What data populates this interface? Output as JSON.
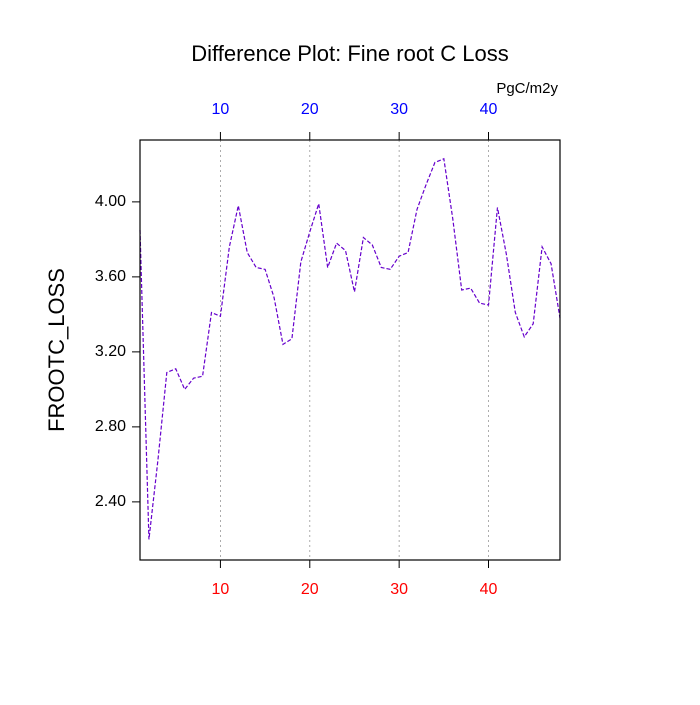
{
  "chart_data": {
    "type": "line",
    "title": "Difference Plot: Fine root C Loss",
    "ylabel": "FROOTC_LOSS",
    "units": "PgC/m2y",
    "x": [
      1,
      2,
      3,
      4,
      5,
      6,
      7,
      8,
      9,
      10,
      11,
      12,
      13,
      14,
      15,
      16,
      17,
      18,
      19,
      20,
      21,
      22,
      23,
      24,
      25,
      26,
      27,
      28,
      29,
      30,
      31,
      32,
      33,
      34,
      35,
      36,
      37,
      38,
      39,
      40,
      41,
      42,
      43,
      44,
      45,
      46,
      47,
      48
    ],
    "series": [
      {
        "color": "#6600cc",
        "values": [
          3.85,
          2.2,
          2.62,
          3.09,
          3.11,
          3.0,
          3.06,
          3.07,
          3.41,
          3.39,
          3.76,
          3.98,
          3.73,
          3.65,
          3.64,
          3.49,
          3.24,
          3.27,
          3.68,
          3.84,
          3.99,
          3.65,
          3.78,
          3.74,
          3.52,
          3.81,
          3.77,
          3.65,
          3.64,
          3.71,
          3.73,
          3.96,
          4.09,
          4.21,
          4.23,
          3.91,
          3.53,
          3.54,
          3.46,
          3.45,
          3.97,
          3.72,
          3.41,
          3.28,
          3.35,
          3.76,
          3.67,
          3.38
        ]
      }
    ],
    "xlim": [
      1,
      48
    ],
    "xticks": [
      10,
      20,
      30,
      40
    ],
    "ylim": [
      2.09,
      4.33
    ],
    "yticks": [
      {
        "value": 2.4,
        "label": "2.40"
      },
      {
        "value": 2.8,
        "label": "2.80"
      },
      {
        "value": 3.2,
        "label": "3.20"
      },
      {
        "value": 3.6,
        "label": "3.60"
      },
      {
        "value": 4.0,
        "label": "4.00"
      }
    ],
    "x_grid": true,
    "dashed": true,
    "xtick_color_bottom": "#ff0000",
    "xtick_color_top": "#0000ff"
  }
}
